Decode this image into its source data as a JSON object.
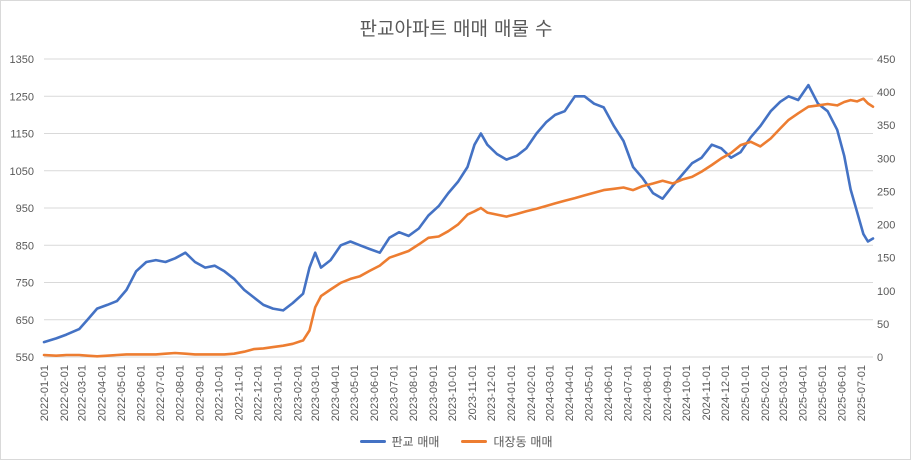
{
  "chart_data": {
    "type": "line",
    "title": "판교아파트 매매 매물 수",
    "xlabel": "",
    "ylabel": "",
    "x_range": [
      "2022-01-01",
      "2025-07-20"
    ],
    "x_ticks": [
      "2022-01-01",
      "2022-02-01",
      "2022-03-01",
      "2022-04-01",
      "2022-05-01",
      "2022-06-01",
      "2022-07-01",
      "2022-08-01",
      "2022-09-01",
      "2022-10-01",
      "2022-11-01",
      "2022-12-01",
      "2023-01-01",
      "2023-02-01",
      "2023-03-01",
      "2023-04-01",
      "2023-05-01",
      "2023-06-01",
      "2023-07-01",
      "2023-08-01",
      "2023-09-01",
      "2023-10-01",
      "2023-11-01",
      "2023-12-01",
      "2024-01-01",
      "2024-02-01",
      "2024-03-01",
      "2024-04-01",
      "2024-05-01",
      "2024-06-01",
      "2024-07-01",
      "2024-08-01",
      "2024-09-01",
      "2024-10-01",
      "2024-11-01",
      "2024-12-01",
      "2025-01-01",
      "2025-02-01",
      "2025-03-01",
      "2025-04-01",
      "2025-05-01",
      "2025-06-01",
      "2025-07-01"
    ],
    "y_left": {
      "ylim": [
        550,
        1350
      ],
      "ticks": [
        550,
        650,
        750,
        850,
        950,
        1050,
        1150,
        1250,
        1350
      ]
    },
    "y_right": {
      "ylim": [
        0,
        450
      ],
      "ticks": [
        0,
        50,
        100,
        150,
        200,
        250,
        300,
        350,
        400,
        450
      ]
    },
    "grid": true,
    "legend_position": "bottom",
    "series": [
      {
        "name": "판교 매매",
        "axis": "left",
        "color": "#4472c4",
        "points": [
          [
            "2022-01-01",
            590
          ],
          [
            "2022-01-20",
            600
          ],
          [
            "2022-02-05",
            610
          ],
          [
            "2022-02-25",
            625
          ],
          [
            "2022-03-10",
            650
          ],
          [
            "2022-03-25",
            680
          ],
          [
            "2022-04-10",
            690
          ],
          [
            "2022-04-25",
            700
          ],
          [
            "2022-05-10",
            730
          ],
          [
            "2022-05-25",
            780
          ],
          [
            "2022-06-10",
            805
          ],
          [
            "2022-06-25",
            810
          ],
          [
            "2022-07-10",
            805
          ],
          [
            "2022-07-25",
            815
          ],
          [
            "2022-08-10",
            830
          ],
          [
            "2022-08-25",
            805
          ],
          [
            "2022-09-10",
            790
          ],
          [
            "2022-09-25",
            795
          ],
          [
            "2022-10-10",
            780
          ],
          [
            "2022-10-25",
            760
          ],
          [
            "2022-11-10",
            730
          ],
          [
            "2022-11-25",
            710
          ],
          [
            "2022-12-10",
            690
          ],
          [
            "2022-12-25",
            680
          ],
          [
            "2023-01-10",
            675
          ],
          [
            "2023-01-25",
            695
          ],
          [
            "2023-02-10",
            720
          ],
          [
            "2023-02-20",
            790
          ],
          [
            "2023-03-01",
            830
          ],
          [
            "2023-03-10",
            790
          ],
          [
            "2023-03-25",
            810
          ],
          [
            "2023-04-10",
            850
          ],
          [
            "2023-04-25",
            860
          ],
          [
            "2023-05-10",
            850
          ],
          [
            "2023-05-25",
            840
          ],
          [
            "2023-06-10",
            830
          ],
          [
            "2023-06-25",
            870
          ],
          [
            "2023-07-10",
            885
          ],
          [
            "2023-07-25",
            875
          ],
          [
            "2023-08-10",
            895
          ],
          [
            "2023-08-25",
            930
          ],
          [
            "2023-09-10",
            955
          ],
          [
            "2023-09-25",
            990
          ],
          [
            "2023-10-10",
            1020
          ],
          [
            "2023-10-25",
            1060
          ],
          [
            "2023-11-05",
            1120
          ],
          [
            "2023-11-15",
            1150
          ],
          [
            "2023-11-25",
            1120
          ],
          [
            "2023-12-10",
            1095
          ],
          [
            "2023-12-25",
            1080
          ],
          [
            "2024-01-10",
            1090
          ],
          [
            "2024-01-25",
            1110
          ],
          [
            "2024-02-10",
            1150
          ],
          [
            "2024-02-25",
            1180
          ],
          [
            "2024-03-10",
            1200
          ],
          [
            "2024-03-25",
            1210
          ],
          [
            "2024-04-10",
            1250
          ],
          [
            "2024-04-25",
            1250
          ],
          [
            "2024-05-10",
            1230
          ],
          [
            "2024-05-25",
            1220
          ],
          [
            "2024-06-10",
            1170
          ],
          [
            "2024-06-25",
            1130
          ],
          [
            "2024-07-10",
            1060
          ],
          [
            "2024-07-25",
            1030
          ],
          [
            "2024-08-10",
            990
          ],
          [
            "2024-08-25",
            975
          ],
          [
            "2024-09-10",
            1010
          ],
          [
            "2024-09-25",
            1040
          ],
          [
            "2024-10-10",
            1070
          ],
          [
            "2024-10-25",
            1085
          ],
          [
            "2024-11-10",
            1120
          ],
          [
            "2024-11-25",
            1110
          ],
          [
            "2024-12-10",
            1085
          ],
          [
            "2024-12-25",
            1100
          ],
          [
            "2025-01-10",
            1140
          ],
          [
            "2025-01-25",
            1170
          ],
          [
            "2025-02-10",
            1210
          ],
          [
            "2025-02-25",
            1235
          ],
          [
            "2025-03-10",
            1250
          ],
          [
            "2025-03-25",
            1240
          ],
          [
            "2025-04-10",
            1280
          ],
          [
            "2025-04-25",
            1230
          ],
          [
            "2025-05-10",
            1210
          ],
          [
            "2025-05-25",
            1160
          ],
          [
            "2025-06-05",
            1090
          ],
          [
            "2025-06-15",
            1000
          ],
          [
            "2025-06-25",
            940
          ],
          [
            "2025-07-05",
            880
          ],
          [
            "2025-07-12",
            860
          ],
          [
            "2025-07-20",
            868
          ]
        ]
      },
      {
        "name": "대장동 매매",
        "axis": "right",
        "color": "#ed7d31",
        "points": [
          [
            "2022-01-01",
            3
          ],
          [
            "2022-01-20",
            2
          ],
          [
            "2022-02-05",
            3
          ],
          [
            "2022-02-25",
            3
          ],
          [
            "2022-03-10",
            2
          ],
          [
            "2022-03-25",
            1
          ],
          [
            "2022-04-10",
            2
          ],
          [
            "2022-04-25",
            3
          ],
          [
            "2022-05-10",
            4
          ],
          [
            "2022-05-25",
            4
          ],
          [
            "2022-06-10",
            4
          ],
          [
            "2022-06-25",
            4
          ],
          [
            "2022-07-10",
            5
          ],
          [
            "2022-07-25",
            6
          ],
          [
            "2022-08-10",
            5
          ],
          [
            "2022-08-25",
            4
          ],
          [
            "2022-09-10",
            4
          ],
          [
            "2022-09-25",
            4
          ],
          [
            "2022-10-10",
            4
          ],
          [
            "2022-10-25",
            5
          ],
          [
            "2022-11-10",
            8
          ],
          [
            "2022-11-25",
            12
          ],
          [
            "2022-12-10",
            13
          ],
          [
            "2022-12-25",
            15
          ],
          [
            "2023-01-10",
            17
          ],
          [
            "2023-01-25",
            20
          ],
          [
            "2023-02-10",
            25
          ],
          [
            "2023-02-20",
            40
          ],
          [
            "2023-03-01",
            75
          ],
          [
            "2023-03-10",
            92
          ],
          [
            "2023-03-25",
            102
          ],
          [
            "2023-04-10",
            112
          ],
          [
            "2023-04-25",
            118
          ],
          [
            "2023-05-10",
            122
          ],
          [
            "2023-05-25",
            130
          ],
          [
            "2023-06-10",
            138
          ],
          [
            "2023-06-25",
            150
          ],
          [
            "2023-07-10",
            155
          ],
          [
            "2023-07-25",
            160
          ],
          [
            "2023-08-10",
            170
          ],
          [
            "2023-08-25",
            180
          ],
          [
            "2023-09-10",
            182
          ],
          [
            "2023-09-25",
            190
          ],
          [
            "2023-10-10",
            200
          ],
          [
            "2023-10-25",
            215
          ],
          [
            "2023-11-05",
            220
          ],
          [
            "2023-11-15",
            225
          ],
          [
            "2023-11-25",
            218
          ],
          [
            "2023-12-10",
            215
          ],
          [
            "2023-12-25",
            212
          ],
          [
            "2024-01-10",
            216
          ],
          [
            "2024-01-25",
            220
          ],
          [
            "2024-02-10",
            224
          ],
          [
            "2024-02-25",
            228
          ],
          [
            "2024-03-10",
            232
          ],
          [
            "2024-03-25",
            236
          ],
          [
            "2024-04-10",
            240
          ],
          [
            "2024-04-25",
            244
          ],
          [
            "2024-05-10",
            248
          ],
          [
            "2024-05-25",
            252
          ],
          [
            "2024-06-10",
            254
          ],
          [
            "2024-06-25",
            256
          ],
          [
            "2024-07-10",
            252
          ],
          [
            "2024-07-25",
            258
          ],
          [
            "2024-08-10",
            262
          ],
          [
            "2024-08-25",
            266
          ],
          [
            "2024-09-10",
            262
          ],
          [
            "2024-09-25",
            268
          ],
          [
            "2024-10-10",
            272
          ],
          [
            "2024-10-25",
            280
          ],
          [
            "2024-11-10",
            290
          ],
          [
            "2024-11-25",
            300
          ],
          [
            "2024-12-10",
            308
          ],
          [
            "2024-12-25",
            320
          ],
          [
            "2025-01-10",
            325
          ],
          [
            "2025-01-25",
            318
          ],
          [
            "2025-02-10",
            330
          ],
          [
            "2025-02-25",
            345
          ],
          [
            "2025-03-10",
            358
          ],
          [
            "2025-03-25",
            368
          ],
          [
            "2025-04-10",
            378
          ],
          [
            "2025-04-25",
            380
          ],
          [
            "2025-05-10",
            382
          ],
          [
            "2025-05-25",
            380
          ],
          [
            "2025-06-05",
            385
          ],
          [
            "2025-06-15",
            388
          ],
          [
            "2025-06-25",
            386
          ],
          [
            "2025-07-05",
            390
          ],
          [
            "2025-07-12",
            383
          ],
          [
            "2025-07-20",
            378
          ]
        ]
      }
    ]
  }
}
